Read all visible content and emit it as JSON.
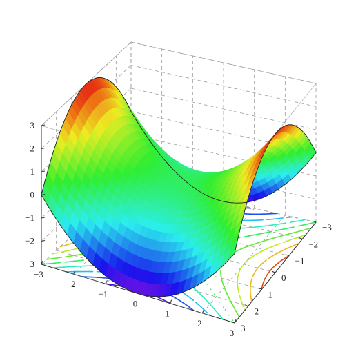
{
  "chart_data": {
    "type": "surface3d",
    "function": "z = x^2 - y^2 (saddle surface, with contour projection on the floor)",
    "x_range": [
      -3,
      3
    ],
    "y_range": [
      -3,
      3
    ],
    "z_range": [
      -3,
      3
    ],
    "x_ticks": [
      "−3",
      "−2",
      "−1",
      "0",
      "1",
      "2",
      "3"
    ],
    "y_ticks": [
      "−3",
      "−2",
      "−1",
      "0",
      "1",
      "2",
      "3"
    ],
    "z_ticks": [
      "−3",
      "−2",
      "−1",
      "0",
      "1",
      "2",
      "3"
    ],
    "contour_levels": [
      -8,
      -6,
      -4,
      -2,
      0,
      2,
      4,
      6,
      8
    ],
    "colormap": "rainbow (blue = low, red = high)",
    "grid": true,
    "title": "",
    "xlabel": "",
    "ylabel": "",
    "zlabel": ""
  }
}
